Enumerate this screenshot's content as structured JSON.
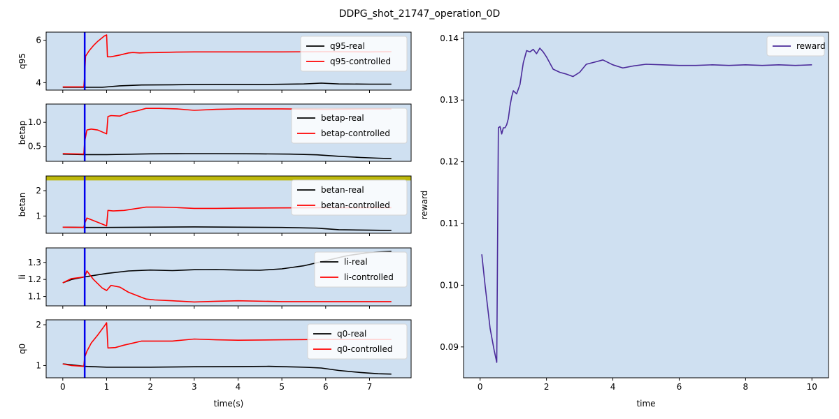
{
  "figure": {
    "title": "DDPG_shot_21747_operation_0D"
  },
  "chart_data": [
    {
      "id": "q95",
      "type": "line",
      "xlabel": "",
      "ylabel": "q95",
      "xlim": [
        -0.38,
        7.95
      ],
      "ylim": [
        3.65,
        6.38
      ],
      "xticks": [
        0,
        1,
        2,
        3,
        4,
        5,
        6,
        7
      ],
      "xticklabels": [],
      "yticks": [
        4,
        6
      ],
      "yticklabels": [
        "4",
        "6"
      ],
      "vline_x": 0.5,
      "threshold_y": null,
      "legend": "top-right",
      "series": [
        {
          "name": "q95-real",
          "color": "#000000",
          "x": [
            0,
            0.5,
            0.9,
            1.3,
            1.8,
            2.5,
            3.5,
            4.5,
            5.5,
            5.9,
            6.3,
            7.0,
            7.5
          ],
          "y": [
            3.78,
            3.78,
            3.78,
            3.85,
            3.89,
            3.9,
            3.92,
            3.91,
            3.94,
            3.98,
            3.94,
            3.93,
            3.93
          ]
        },
        {
          "name": "q95-controlled",
          "color": "#ff0000",
          "x": [
            0,
            0.48,
            0.5,
            0.52,
            0.6,
            0.7,
            0.8,
            0.95,
            1.0,
            1.02,
            1.1,
            1.3,
            1.5,
            1.6,
            1.75,
            1.9,
            2.2,
            2.6,
            3.0,
            4.0,
            5.0,
            6.0,
            7.0,
            7.5
          ],
          "y": [
            3.8,
            3.8,
            4.3,
            5.25,
            5.5,
            5.75,
            5.95,
            6.2,
            6.25,
            5.22,
            5.22,
            5.3,
            5.4,
            5.42,
            5.4,
            5.41,
            5.42,
            5.44,
            5.45,
            5.45,
            5.45,
            5.46,
            5.45,
            5.46
          ]
        }
      ]
    },
    {
      "id": "betap",
      "type": "line",
      "xlabel": "",
      "ylabel": "betap",
      "xlim": [
        -0.38,
        7.95
      ],
      "ylim": [
        0.19,
        1.38
      ],
      "xticks": [
        0,
        1,
        2,
        3,
        4,
        5,
        6,
        7
      ],
      "xticklabels": [],
      "yticks": [
        0.5,
        1.0
      ],
      "yticklabels": [
        "0.5",
        "1.0"
      ],
      "vline_x": 0.5,
      "threshold_y": null,
      "legend": "top-right",
      "series": [
        {
          "name": "betap-real",
          "color": "#000000",
          "x": [
            0,
            0.5,
            1.0,
            2.0,
            2.8,
            3.5,
            4.5,
            5.2,
            5.8,
            6.3,
            6.8,
            7.2,
            7.5
          ],
          "y": [
            0.34,
            0.33,
            0.33,
            0.345,
            0.35,
            0.35,
            0.345,
            0.34,
            0.325,
            0.295,
            0.27,
            0.255,
            0.245
          ]
        },
        {
          "name": "betap-controlled",
          "color": "#ff0000",
          "x": [
            0,
            0.48,
            0.5,
            0.55,
            0.65,
            0.8,
            0.95,
            1.0,
            1.03,
            1.1,
            1.3,
            1.5,
            1.7,
            1.9,
            2.2,
            2.6,
            3.0,
            3.5,
            4.0,
            5.0,
            6.0,
            7.0,
            7.5
          ],
          "y": [
            0.35,
            0.34,
            0.6,
            0.84,
            0.86,
            0.84,
            0.78,
            0.76,
            1.12,
            1.14,
            1.13,
            1.2,
            1.24,
            1.29,
            1.29,
            1.28,
            1.25,
            1.27,
            1.28,
            1.28,
            1.27,
            1.28,
            1.28
          ]
        }
      ]
    },
    {
      "id": "betan",
      "type": "line",
      "xlabel": "",
      "ylabel": "betan",
      "xlim": [
        -0.38,
        7.95
      ],
      "ylim": [
        0.32,
        2.58
      ],
      "xticks": [
        0,
        1,
        2,
        3,
        4,
        5,
        6,
        7
      ],
      "xticklabels": [],
      "yticks": [
        1,
        2
      ],
      "yticklabels": [
        "1",
        "2"
      ],
      "vline_x": 0.5,
      "threshold_y": 2.5,
      "legend": "top-right",
      "series": [
        {
          "name": "betan-real",
          "color": "#000000",
          "x": [
            0,
            0.5,
            1.0,
            2.0,
            3.0,
            4.0,
            5.0,
            5.8,
            6.3,
            7.0,
            7.5
          ],
          "y": [
            0.56,
            0.55,
            0.55,
            0.56,
            0.57,
            0.56,
            0.55,
            0.52,
            0.46,
            0.44,
            0.43
          ]
        },
        {
          "name": "betan-controlled",
          "color": "#ff0000",
          "x": [
            0,
            0.48,
            0.5,
            0.55,
            0.7,
            0.9,
            1.0,
            1.03,
            1.15,
            1.4,
            1.7,
            1.9,
            2.2,
            2.5,
            3.0,
            3.5,
            4.0,
            5.0,
            6.0,
            7.0,
            7.5
          ],
          "y": [
            0.56,
            0.55,
            0.7,
            0.92,
            0.82,
            0.68,
            0.61,
            1.22,
            1.2,
            1.22,
            1.3,
            1.35,
            1.35,
            1.34,
            1.3,
            1.3,
            1.31,
            1.32,
            1.33,
            1.33,
            1.33
          ]
        }
      ]
    },
    {
      "id": "li",
      "type": "line",
      "xlabel": "",
      "ylabel": "li",
      "xlim": [
        -0.38,
        7.95
      ],
      "ylim": [
        1.045,
        1.385
      ],
      "xticks": [
        0,
        1,
        2,
        3,
        4,
        5,
        6,
        7
      ],
      "xticklabels": [],
      "yticks": [
        1.1,
        1.2,
        1.3
      ],
      "yticklabels": [
        "1.1",
        "1.2",
        "1.3"
      ],
      "vline_x": 0.5,
      "threshold_y": null,
      "legend": "top-right",
      "series": [
        {
          "name": "li-real",
          "color": "#000000",
          "x": [
            0,
            0.2,
            0.5,
            1.0,
            1.5,
            2.0,
            2.5,
            3.0,
            3.5,
            4.0,
            4.5,
            5.0,
            5.5,
            6.0,
            6.5,
            7.0,
            7.5
          ],
          "y": [
            1.18,
            1.2,
            1.215,
            1.235,
            1.25,
            1.255,
            1.252,
            1.257,
            1.258,
            1.255,
            1.254,
            1.262,
            1.28,
            1.31,
            1.34,
            1.358,
            1.365
          ]
        },
        {
          "name": "li-controlled",
          "color": "#ff0000",
          "x": [
            0,
            0.2,
            0.5,
            0.55,
            0.7,
            0.9,
            1.0,
            1.1,
            1.3,
            1.5,
            1.7,
            1.9,
            2.1,
            2.5,
            3.0,
            3.5,
            4.0,
            5.0,
            6.0,
            7.0,
            7.5
          ],
          "y": [
            1.18,
            1.205,
            1.215,
            1.25,
            1.2,
            1.15,
            1.135,
            1.165,
            1.155,
            1.125,
            1.105,
            1.085,
            1.08,
            1.075,
            1.068,
            1.072,
            1.075,
            1.07,
            1.07,
            1.07,
            1.07
          ]
        }
      ]
    },
    {
      "id": "q0",
      "type": "line",
      "xlabel": "time(s)",
      "ylabel": "q0",
      "xlim": [
        -0.38,
        7.95
      ],
      "ylim": [
        0.7,
        2.12
      ],
      "xticks": [
        0,
        1,
        2,
        3,
        4,
        5,
        6,
        7
      ],
      "xticklabels": [
        "0",
        "1",
        "2",
        "3",
        "4",
        "5",
        "6",
        "7"
      ],
      "yticks": [
        1,
        2
      ],
      "yticklabels": [
        "1",
        "2"
      ],
      "vline_x": 0.5,
      "threshold_y": null,
      "legend": "top-right",
      "series": [
        {
          "name": "q0-real",
          "color": "#000000",
          "x": [
            0,
            0.5,
            1.0,
            2.0,
            3.0,
            4.0,
            4.7,
            5.5,
            5.9,
            6.3,
            6.8,
            7.2,
            7.5
          ],
          "y": [
            1.04,
            0.98,
            0.96,
            0.96,
            0.97,
            0.975,
            0.98,
            0.96,
            0.94,
            0.88,
            0.83,
            0.8,
            0.79
          ]
        },
        {
          "name": "q0-controlled",
          "color": "#ff0000",
          "x": [
            0,
            0.2,
            0.48,
            0.5,
            0.55,
            0.65,
            0.8,
            0.95,
            1.0,
            1.03,
            1.2,
            1.4,
            1.6,
            1.8,
            2.0,
            2.5,
            3.0,
            3.5,
            4.0,
            5.0,
            6.0,
            7.0,
            7.5
          ],
          "y": [
            1.04,
            1.0,
            0.98,
            1.2,
            1.35,
            1.55,
            1.75,
            1.97,
            2.05,
            1.43,
            1.44,
            1.5,
            1.55,
            1.6,
            1.6,
            1.6,
            1.65,
            1.63,
            1.62,
            1.63,
            1.64,
            1.64,
            1.64
          ]
        }
      ]
    },
    {
      "id": "reward",
      "type": "line",
      "xlabel": "time",
      "ylabel": "reward",
      "xlim": [
        -0.5,
        10.5
      ],
      "ylim": [
        0.085,
        0.141
      ],
      "xticks": [
        0,
        2,
        4,
        6,
        8,
        10
      ],
      "xticklabels": [
        "0",
        "2",
        "4",
        "6",
        "8",
        "10"
      ],
      "yticks": [
        0.09,
        0.1,
        0.11,
        0.12,
        0.13,
        0.14
      ],
      "yticklabels": [
        "0.09",
        "0.10",
        "0.11",
        "0.12",
        "0.13",
        "0.14"
      ],
      "vline_x": null,
      "threshold_y": null,
      "legend": "top-right",
      "series": [
        {
          "name": "reward",
          "color": "#4b2a9a",
          "x": [
            0.05,
            0.15,
            0.3,
            0.42,
            0.5,
            0.55,
            0.6,
            0.65,
            0.7,
            0.75,
            0.8,
            0.85,
            0.9,
            0.95,
            1.0,
            1.1,
            1.2,
            1.3,
            1.4,
            1.5,
            1.6,
            1.7,
            1.8,
            1.9,
            2.0,
            2.2,
            2.4,
            2.6,
            2.8,
            3.0,
            3.2,
            3.5,
            3.7,
            4.0,
            4.3,
            4.6,
            5.0,
            5.5,
            6.0,
            6.5,
            7.0,
            7.5,
            8.0,
            8.5,
            9.0,
            9.5,
            10.0
          ],
          "y": [
            0.105,
            0.1,
            0.093,
            0.0895,
            0.0875,
            0.1255,
            0.1257,
            0.1245,
            0.1255,
            0.1255,
            0.126,
            0.127,
            0.129,
            0.1305,
            0.1315,
            0.131,
            0.1325,
            0.136,
            0.138,
            0.1378,
            0.1382,
            0.1375,
            0.1384,
            0.1378,
            0.137,
            0.135,
            0.1345,
            0.1342,
            0.1338,
            0.1345,
            0.1358,
            0.1362,
            0.1365,
            0.1357,
            0.1352,
            0.1355,
            0.1358,
            0.1357,
            0.1356,
            0.1356,
            0.1357,
            0.1356,
            0.1357,
            0.1356,
            0.1357,
            0.1356,
            0.1357
          ]
        }
      ]
    }
  ]
}
